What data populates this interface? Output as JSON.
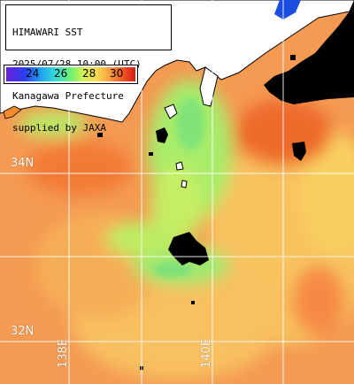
{
  "title_lines": [
    "HIMAWARI SST",
    "2025/07/28 10:00 (UTC)",
    "Kanagawa Prefecture",
    "supplied by JAXA"
  ],
  "legend": {
    "ticks": [
      "24",
      "26",
      "28",
      "30"
    ],
    "colors": [
      "#6b1fd9",
      "#2a3df0",
      "#1f9cf2",
      "#35dcd9",
      "#6ef070",
      "#d6f250",
      "#f8d850",
      "#f8a040",
      "#f25a25",
      "#d51818"
    ]
  },
  "grid": {
    "lat_labels": [
      "34N",
      "32N"
    ],
    "lon_labels": [
      "138E",
      "140E"
    ]
  },
  "colors": {
    "sea_warm": "#f49a52",
    "sea_mid": "#f8c060",
    "sea_cool": "#8ee870",
    "sea_hot": "#ee6a2c",
    "land": "#ffffff",
    "no_data": "#000000",
    "grid": "#ffffff"
  }
}
